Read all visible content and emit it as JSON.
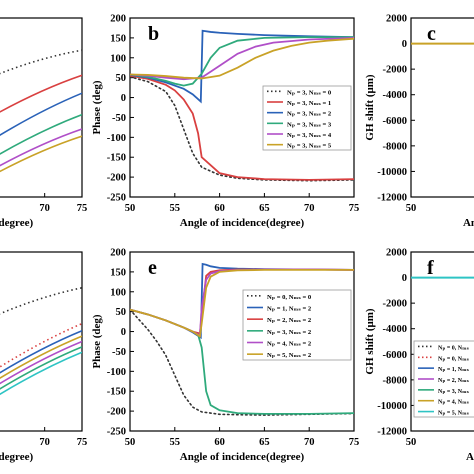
{
  "figure": {
    "panels": [
      {
        "id": "left-top",
        "letter": "",
        "xlabel": "(degree)",
        "ylabel": "",
        "xticks": [
          "70",
          "75"
        ],
        "yticks": []
      },
      {
        "id": "b",
        "letter": "b",
        "xlabel": "Angle of incidence(degree)",
        "ylabel": "Phase (deg)",
        "xticks": [
          "50",
          "55",
          "60",
          "65",
          "70",
          "75"
        ],
        "yticks": [
          "200",
          "150",
          "100",
          "50",
          "0",
          "-50",
          "-100",
          "-150",
          "-200",
          "-250"
        ]
      },
      {
        "id": "c",
        "letter": "c",
        "xlabel": "An",
        "ylabel": "GH shift (μm)",
        "xticks": [
          "50",
          "5"
        ],
        "yticks": [
          "2000",
          "0",
          "-2000",
          "-4000",
          "-6000",
          "-8000",
          "-10000",
          "-12000"
        ]
      },
      {
        "id": "left-bottom",
        "letter": "",
        "xlabel": "(degree)",
        "ylabel": "",
        "xticks": [
          "70",
          "75"
        ],
        "yticks": []
      },
      {
        "id": "e",
        "letter": "e",
        "xlabel": "Angle of incidence(degree)",
        "ylabel": "Phase (deg)",
        "xticks": [
          "50",
          "55",
          "60",
          "65",
          "70",
          "75"
        ],
        "yticks": [
          "200",
          "150",
          "100",
          "50",
          "0",
          "-50",
          "-100",
          "-150",
          "-200",
          "-250"
        ]
      },
      {
        "id": "f",
        "letter": "f",
        "xlabel": "A",
        "ylabel": "GH shift (μm)",
        "xticks": [
          "50"
        ],
        "yticks": [
          "2000",
          "0",
          "-2000",
          "-4000",
          "-6000",
          "-8000",
          "-10000",
          "-12000"
        ]
      }
    ],
    "legend_b": [
      "Nₚ = 3, Nₘₛ = 0",
      "Nₚ = 3, Nₘₛ = 1",
      "Nₚ = 3, Nₘₛ = 2",
      "Nₚ = 3, Nₘₛ = 3",
      "Nₚ = 3, Nₘₛ = 4",
      "Nₚ = 3, Nₘₛ = 5"
    ],
    "legend_e": [
      "Nₚ = 0, Nₘₛ = 0",
      "Nₚ = 1, Nₘₛ = 2",
      "Nₚ = 2, Nₘₛ = 2",
      "Nₚ = 3, Nₘₛ = 2",
      "Nₚ = 4, Nₘₛ = 2",
      "Nₚ = 5, Nₘₛ = 2"
    ],
    "legend_f": [
      "Nₚ = 0, Nₘₛ",
      "Nₚ = 0, Nₘₛ",
      "Nₚ = 1, Nₘₛ",
      "Nₚ = 2, Nₘₛ",
      "Nₚ = 3, Nₘₛ",
      "Nₚ = 4, Nₘₛ",
      "Nₚ = 5, Nₘₛ"
    ],
    "colors_b": [
      "#333333",
      "#d94040",
      "#2a62b8",
      "#2faa7c",
      "#b04fc8",
      "#c9a227"
    ],
    "colors_e": [
      "#333333",
      "#2a62b8",
      "#d94040",
      "#2faa7c",
      "#b04fc8",
      "#c9a227",
      "#2ec4c4"
    ],
    "colors_f": [
      "#333333",
      "#d94040",
      "#2a62b8",
      "#b04fc8",
      "#2faa7c",
      "#c9a227",
      "#2ec4c4"
    ]
  },
  "chart_data": [
    {
      "type": "line",
      "panel": "b",
      "ylabel": "Phase (deg)",
      "xlabel": "Angle of incidence(degree)",
      "xlim": [
        50,
        75
      ],
      "ylim": [
        -250,
        200
      ],
      "series": [
        {
          "name": "Nₚ = 3, Nₘₛ = 0",
          "style": "dotted",
          "x": [
            50,
            52,
            54,
            55,
            56,
            57,
            58,
            60,
            62,
            65,
            70,
            75
          ],
          "y": [
            52,
            40,
            15,
            -20,
            -80,
            -140,
            -175,
            -195,
            -203,
            -207,
            -209,
            -207
          ]
        },
        {
          "name": "Nₚ = 3, Nₘₛ = 1",
          "x": [
            50,
            52,
            54,
            55,
            56,
            57,
            57.6,
            58,
            60,
            62,
            65,
            70,
            75
          ],
          "y": [
            55,
            47,
            32,
            18,
            -5,
            -40,
            -90,
            -150,
            -190,
            -200,
            -205,
            -207,
            -205
          ]
        },
        {
          "name": "Nₚ = 3, Nₘₛ = 2",
          "x": [
            50,
            52,
            54,
            56,
            57,
            57.9,
            58.1,
            59,
            60,
            62,
            65,
            70,
            75
          ],
          "y": [
            57,
            50,
            38,
            22,
            8,
            -10,
            168,
            165,
            163,
            160,
            157,
            154,
            152
          ]
        },
        {
          "name": "Nₚ = 3, Nₘₛ = 3",
          "x": [
            50,
            52,
            54,
            55,
            56,
            57,
            58,
            59,
            60,
            62,
            65,
            70,
            75
          ],
          "y": [
            58,
            52,
            42,
            35,
            30,
            35,
            60,
            100,
            125,
            143,
            150,
            152,
            152
          ]
        },
        {
          "name": "Nₚ = 3, Nₘₛ = 4",
          "x": [
            50,
            52,
            54,
            56,
            58,
            60,
            62,
            64,
            66,
            70,
            75
          ],
          "y": [
            58,
            55,
            50,
            46,
            50,
            80,
            110,
            128,
            138,
            146,
            150
          ]
        },
        {
          "name": "Nₚ = 3, Nₘₛ = 5",
          "x": [
            50,
            52,
            54,
            56,
            58,
            60,
            62,
            64,
            66,
            68,
            70,
            72,
            75
          ],
          "y": [
            58,
            57,
            54,
            50,
            48,
            55,
            75,
            100,
            118,
            130,
            138,
            143,
            148
          ]
        }
      ]
    },
    {
      "type": "line",
      "panel": "e",
      "ylabel": "Phase (deg)",
      "xlabel": "Angle of incidence(degree)",
      "xlim": [
        50,
        75
      ],
      "ylim": [
        -250,
        200
      ],
      "series": [
        {
          "name": "Nₚ = 0, Nₘₛ = 0",
          "style": "dotted",
          "x": [
            50,
            52,
            53,
            54,
            55,
            56,
            57,
            58,
            60,
            62,
            65,
            70,
            75
          ],
          "y": [
            55,
            5,
            -25,
            -60,
            -110,
            -160,
            -190,
            -202,
            -208,
            -209,
            -210,
            -208,
            -206
          ]
        },
        {
          "name": "Nₚ = 1, Nₘₛ = 2",
          "x": [
            50,
            52,
            54,
            56,
            57,
            57.9,
            58.1,
            58.5,
            59,
            60,
            62,
            65,
            70,
            75
          ],
          "y": [
            55,
            43,
            28,
            10,
            -2,
            -15,
            170,
            168,
            164,
            160,
            158,
            157,
            156,
            155
          ]
        },
        {
          "name": "Nₚ = 2, Nₘₛ = 2",
          "x": [
            50,
            52,
            54,
            56,
            57,
            57.8,
            58,
            58.5,
            59,
            60,
            62,
            65,
            70,
            75
          ],
          "y": [
            55,
            43,
            28,
            10,
            0,
            -5,
            40,
            140,
            150,
            154,
            156,
            156,
            156,
            155
          ]
        },
        {
          "name": "Nₚ = 3, Nₘₛ = 2",
          "x": [
            50,
            52,
            54,
            56,
            57,
            57.6,
            58,
            58.5,
            59,
            60,
            62,
            65,
            70,
            75
          ],
          "y": [
            55,
            43,
            28,
            10,
            0,
            -8,
            -40,
            -150,
            -185,
            -198,
            -205,
            -207,
            -207,
            -205
          ]
        },
        {
          "name": "Nₚ = 4, Nₘₛ = 2",
          "x": [
            50,
            52,
            54,
            56,
            57,
            57.8,
            58,
            58.5,
            59,
            60,
            62,
            65,
            70,
            75
          ],
          "y": [
            55,
            43,
            28,
            10,
            0,
            -10,
            60,
            130,
            146,
            152,
            155,
            156,
            156,
            155
          ]
        },
        {
          "name": "Nₚ = 5, Nₘₛ = 2",
          "x": [
            50,
            52,
            54,
            56,
            57,
            57.8,
            58,
            58.5,
            59,
            60,
            62,
            65,
            70,
            75
          ],
          "y": [
            55,
            43,
            28,
            10,
            0,
            -12,
            20,
            110,
            138,
            150,
            154,
            155,
            155,
            155
          ]
        }
      ]
    },
    {
      "type": "line",
      "panel": "c",
      "ylabel": "GH shift (μm)",
      "xlim": [
        50,
        55
      ],
      "ylim": [
        -12000,
        2000
      ],
      "series": [
        {
          "x": [
            50,
            55
          ],
          "y": [
            0,
            0
          ]
        }
      ]
    },
    {
      "type": "line",
      "panel": "f",
      "ylabel": "GH shift (μm)",
      "xlim": [
        50,
        55
      ],
      "ylim": [
        -12000,
        2000
      ],
      "series": [
        {
          "x": [
            50,
            55
          ],
          "y": [
            0,
            0
          ]
        }
      ]
    }
  ]
}
